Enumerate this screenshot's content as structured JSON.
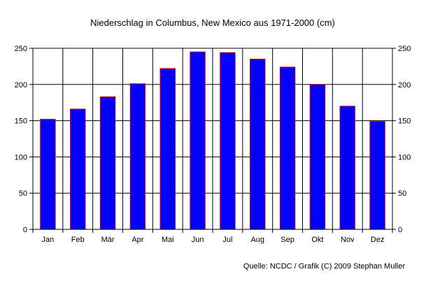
{
  "chart_data": {
    "type": "bar",
    "title": "Niederschlag in Columbus, New Mexico aus 1971-2000 (cm)",
    "categories": [
      "Jan",
      "Feb",
      "Mär",
      "Apr",
      "Mai",
      "Jun",
      "Jul",
      "Aug",
      "Sep",
      "Okt",
      "Nov",
      "Dez"
    ],
    "series": [
      {
        "values": [
          152,
          166,
          183,
          201,
          222,
          245,
          244,
          235,
          224,
          200,
          170,
          149
        ]
      }
    ],
    "ylim": [
      0,
      250
    ],
    "yticks": [
      0,
      50,
      100,
      150,
      200,
      250
    ],
    "ytick_labels": [
      "0",
      "50",
      "100",
      "150",
      "200",
      "250"
    ],
    "right_axis_ticks": [
      "0",
      "50",
      "100",
      "150",
      "200",
      "250"
    ],
    "grid": true,
    "bar_fill": "#0000ff",
    "bar_edge": "#cc0000",
    "source": "Quelle: NCDC / Grafik (C) 2009 Stephan Muller"
  }
}
